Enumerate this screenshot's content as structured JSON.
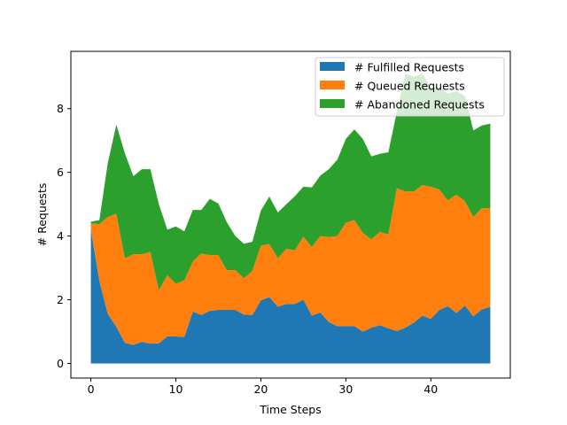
{
  "chart_data": {
    "type": "area",
    "stacked": true,
    "title": "",
    "xlabel": "Time Steps",
    "ylabel": "# Requests",
    "xlim": [
      -2.35,
      49.35
    ],
    "ylim": [
      -0.46,
      9.8
    ],
    "xticks": [
      0,
      10,
      20,
      30,
      40
    ],
    "yticks": [
      0,
      2,
      4,
      6,
      8
    ],
    "grid": false,
    "legend_position": "top-right",
    "x": [
      0,
      1,
      2,
      3,
      4,
      5,
      6,
      7,
      8,
      9,
      10,
      11,
      12,
      13,
      14,
      15,
      16,
      17,
      18,
      19,
      20,
      21,
      22,
      23,
      24,
      25,
      26,
      27,
      28,
      29,
      30,
      31,
      32,
      33,
      34,
      35,
      36,
      37,
      38,
      39,
      40,
      41,
      42,
      43,
      44,
      45,
      46,
      47
    ],
    "series": [
      {
        "name": "# Fulfilled Requests",
        "color": "#1f77b4",
        "values": [
          4.2,
          2.6,
          1.55,
          1.15,
          0.65,
          0.58,
          0.68,
          0.62,
          0.63,
          0.85,
          0.85,
          0.83,
          1.63,
          1.52,
          1.65,
          1.68,
          1.68,
          1.68,
          1.53,
          1.52,
          1.98,
          2.08,
          1.78,
          1.87,
          1.87,
          2.0,
          1.5,
          1.6,
          1.3,
          1.17,
          1.17,
          1.17,
          1.0,
          1.12,
          1.2,
          1.1,
          1.02,
          1.12,
          1.28,
          1.5,
          1.4,
          1.68,
          1.8,
          1.58,
          1.82,
          1.48,
          1.7,
          1.78
        ]
      },
      {
        "name": "# Queued Requests",
        "color": "#ff7f0e",
        "values": [
          0.2,
          1.77,
          3.05,
          3.55,
          2.65,
          2.85,
          2.75,
          2.88,
          1.67,
          1.92,
          1.65,
          1.78,
          1.57,
          1.93,
          1.75,
          1.72,
          1.25,
          1.25,
          1.15,
          1.38,
          1.72,
          1.67,
          1.52,
          1.73,
          1.68,
          1.98,
          2.16,
          2.4,
          2.67,
          2.83,
          3.25,
          3.33,
          3.1,
          2.78,
          2.93,
          2.95,
          4.48,
          4.28,
          4.12,
          4.1,
          4.15,
          3.78,
          3.32,
          3.72,
          3.28,
          3.12,
          3.17,
          3.1
        ]
      },
      {
        "name": "# Abandoned Requests",
        "color": "#2ca02c",
        "values": [
          0.05,
          0.13,
          1.7,
          2.8,
          3.3,
          2.45,
          2.67,
          2.6,
          2.7,
          1.43,
          1.8,
          1.54,
          1.62,
          1.37,
          1.77,
          1.62,
          1.5,
          1.07,
          1.08,
          0.92,
          1.1,
          1.49,
          1.44,
          1.4,
          1.7,
          1.57,
          1.87,
          1.9,
          2.13,
          2.4,
          2.63,
          2.85,
          2.95,
          2.6,
          2.45,
          2.58,
          2.4,
          3.7,
          3.6,
          3.5,
          3.1,
          3.22,
          3.35,
          3.25,
          3.3,
          2.72,
          2.6,
          2.65
        ]
      }
    ]
  }
}
